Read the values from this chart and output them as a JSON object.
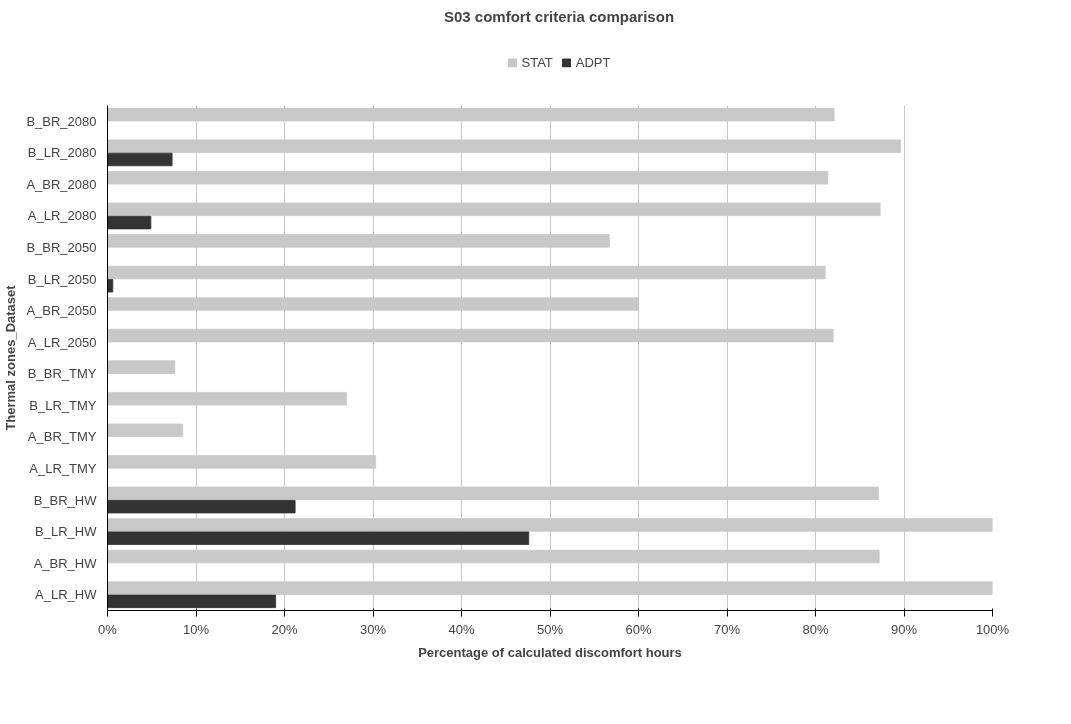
{
  "chart_data": {
    "type": "bar",
    "orientation": "horizontal",
    "title": "S03 comfort criteria comparison",
    "xlabel": "Percentage of calculated discomfort hours",
    "ylabel": "Thermal zones_Dataset",
    "categories": [
      "B_BR_2080",
      "B_LR_2080",
      "A_BR_2080",
      "A_LR_2080",
      "B_BR_2050",
      "B_LR_2050",
      "A_BR_2050",
      "A_LR_2050",
      "B_BR_TMY",
      "B_LR_TMY",
      "A_BR_TMY",
      "A_LR_TMY",
      "B_BR_HW",
      "B_LR_HW",
      "A_BR_HW",
      "A_LR_HW"
    ],
    "series": [
      {
        "name": "STAT",
        "color": "#c8c8c8",
        "values": [
          82.1,
          89.6,
          81.4,
          87.3,
          56.7,
          81.1,
          60.0,
          82.0,
          7.6,
          27.0,
          8.5,
          30.3,
          87.1,
          100,
          87.2,
          100
        ]
      },
      {
        "name": "ADPT",
        "color": "#333333",
        "values": [
          0,
          7.3,
          0,
          4.9,
          0,
          0.6,
          0,
          0,
          0,
          0,
          0,
          0,
          21.2,
          47.6,
          0,
          19.0
        ]
      }
    ],
    "xlim": [
      0,
      100
    ],
    "xticks": [
      {
        "value": 0,
        "label": "0%"
      },
      {
        "value": 10,
        "label": "10%"
      },
      {
        "value": 20,
        "label": "20%"
      },
      {
        "value": 30,
        "label": "30%"
      },
      {
        "value": 40,
        "label": "40%"
      },
      {
        "value": 50,
        "label": "50%"
      },
      {
        "value": 60,
        "label": "60%"
      },
      {
        "value": 70,
        "label": "70%"
      },
      {
        "value": 80,
        "label": "80%"
      },
      {
        "value": 90,
        "label": "90%"
      },
      {
        "value": 100,
        "label": "100%"
      }
    ],
    "grid": "x",
    "legend": "top"
  }
}
